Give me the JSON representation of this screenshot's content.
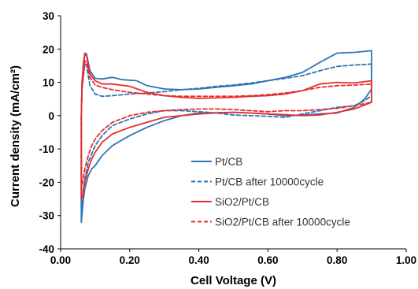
{
  "chart_data": {
    "type": "line",
    "title": "",
    "xlabel": "Cell Voltage (V)",
    "ylabel": "Current density (mA/cm²)",
    "xlim": [
      0.0,
      1.0
    ],
    "ylim": [
      -40,
      30
    ],
    "x_ticks": [
      "0.00",
      "0.20",
      "0.40",
      "0.60",
      "0.80",
      "1.00"
    ],
    "y_ticks": [
      "30",
      "20",
      "10",
      "0",
      "-10",
      "-20",
      "-30",
      "-40"
    ],
    "grid": false,
    "legend_position": "center-right",
    "series": [
      {
        "name": "Pt/CB",
        "color": "#2e75b6",
        "dash": "solid",
        "points": [
          [
            0.06,
            -32
          ],
          [
            0.06,
            -27
          ],
          [
            0.06,
            -12
          ],
          [
            0.06,
            0
          ],
          [
            0.062,
            10
          ],
          [
            0.066,
            16
          ],
          [
            0.07,
            18.8
          ],
          [
            0.075,
            18.5
          ],
          [
            0.085,
            13.5
          ],
          [
            0.1,
            11.2
          ],
          [
            0.12,
            11
          ],
          [
            0.15,
            11.5
          ],
          [
            0.18,
            10.8
          ],
          [
            0.22,
            10.5
          ],
          [
            0.25,
            9
          ],
          [
            0.3,
            8
          ],
          [
            0.35,
            7.8
          ],
          [
            0.4,
            8
          ],
          [
            0.45,
            8.5
          ],
          [
            0.5,
            9
          ],
          [
            0.55,
            9.5
          ],
          [
            0.6,
            10.5
          ],
          [
            0.65,
            11.5
          ],
          [
            0.7,
            13
          ],
          [
            0.75,
            16
          ],
          [
            0.8,
            18.8
          ],
          [
            0.85,
            19
          ],
          [
            0.9,
            19.5
          ],
          [
            0.9,
            10
          ],
          [
            0.9,
            8
          ],
          [
            0.88,
            5
          ],
          [
            0.85,
            2.5
          ],
          [
            0.8,
            0.8
          ],
          [
            0.75,
            0.5
          ],
          [
            0.7,
            0.2
          ],
          [
            0.65,
            0
          ],
          [
            0.6,
            0.5
          ],
          [
            0.55,
            0.8
          ],
          [
            0.5,
            1
          ],
          [
            0.4,
            0.8
          ],
          [
            0.35,
            0
          ],
          [
            0.3,
            -1.5
          ],
          [
            0.25,
            -3.5
          ],
          [
            0.2,
            -6
          ],
          [
            0.15,
            -9
          ],
          [
            0.12,
            -12
          ],
          [
            0.1,
            -15
          ],
          [
            0.09,
            -16
          ],
          [
            0.08,
            -18
          ],
          [
            0.07,
            -22
          ],
          [
            0.065,
            -26
          ],
          [
            0.06,
            -32
          ]
        ]
      },
      {
        "name": "Pt/CB after 10000cycle",
        "color": "#2e75b6",
        "dash": "dashed",
        "points": [
          [
            0.06,
            -28
          ],
          [
            0.06,
            -22
          ],
          [
            0.06,
            -10
          ],
          [
            0.06,
            0
          ],
          [
            0.062,
            8
          ],
          [
            0.066,
            12
          ],
          [
            0.07,
            15.5
          ],
          [
            0.075,
            15
          ],
          [
            0.085,
            9
          ],
          [
            0.1,
            6.5
          ],
          [
            0.12,
            5.8
          ],
          [
            0.15,
            6
          ],
          [
            0.2,
            6.5
          ],
          [
            0.25,
            6.8
          ],
          [
            0.3,
            7.2
          ],
          [
            0.35,
            7.8
          ],
          [
            0.4,
            8.2
          ],
          [
            0.45,
            8.8
          ],
          [
            0.5,
            9.2
          ],
          [
            0.55,
            9.8
          ],
          [
            0.6,
            10.5
          ],
          [
            0.65,
            11.2
          ],
          [
            0.7,
            12
          ],
          [
            0.75,
            13.5
          ],
          [
            0.8,
            14.8
          ],
          [
            0.85,
            15.2
          ],
          [
            0.9,
            15.5
          ],
          [
            0.9,
            9
          ],
          [
            0.9,
            6
          ],
          [
            0.88,
            4.5
          ],
          [
            0.85,
            3
          ],
          [
            0.8,
            2.5
          ],
          [
            0.75,
            1.5
          ],
          [
            0.7,
            0.5
          ],
          [
            0.65,
            -0.5
          ],
          [
            0.6,
            -0.2
          ],
          [
            0.55,
            0
          ],
          [
            0.5,
            0.2
          ],
          [
            0.45,
            0.8
          ],
          [
            0.4,
            1.2
          ],
          [
            0.35,
            1.5
          ],
          [
            0.3,
            1.5
          ],
          [
            0.25,
            0.5
          ],
          [
            0.2,
            -1
          ],
          [
            0.15,
            -3
          ],
          [
            0.12,
            -6
          ],
          [
            0.1,
            -9
          ],
          [
            0.08,
            -14
          ],
          [
            0.07,
            -19
          ],
          [
            0.065,
            -23
          ],
          [
            0.06,
            -28
          ]
        ]
      },
      {
        "name": "SiO2/Pt/CB",
        "color": "#e82d2d",
        "dash": "solid",
        "points": [
          [
            0.06,
            -25
          ],
          [
            0.06,
            -20
          ],
          [
            0.06,
            -8
          ],
          [
            0.06,
            0
          ],
          [
            0.062,
            10
          ],
          [
            0.066,
            15
          ],
          [
            0.07,
            18.5
          ],
          [
            0.075,
            18
          ],
          [
            0.085,
            12.5
          ],
          [
            0.1,
            10.5
          ],
          [
            0.12,
            9.5
          ],
          [
            0.15,
            9.5
          ],
          [
            0.2,
            8.8
          ],
          [
            0.25,
            7
          ],
          [
            0.3,
            6
          ],
          [
            0.35,
            5.5
          ],
          [
            0.4,
            5.2
          ],
          [
            0.5,
            5.5
          ],
          [
            0.55,
            5.8
          ],
          [
            0.6,
            6
          ],
          [
            0.65,
            6.5
          ],
          [
            0.7,
            7.5
          ],
          [
            0.75,
            9.5
          ],
          [
            0.8,
            10
          ],
          [
            0.85,
            9.8
          ],
          [
            0.9,
            10.5
          ],
          [
            0.9,
            6
          ],
          [
            0.9,
            4
          ],
          [
            0.85,
            2
          ],
          [
            0.8,
            1
          ],
          [
            0.75,
            0.2
          ],
          [
            0.7,
            0
          ],
          [
            0.65,
            0.3
          ],
          [
            0.6,
            0.5
          ],
          [
            0.55,
            0.8
          ],
          [
            0.5,
            1
          ],
          [
            0.45,
            0.8
          ],
          [
            0.4,
            0.5
          ],
          [
            0.35,
            0
          ],
          [
            0.3,
            -0.5
          ],
          [
            0.25,
            -2
          ],
          [
            0.2,
            -3.5
          ],
          [
            0.15,
            -5.5
          ],
          [
            0.12,
            -8
          ],
          [
            0.1,
            -11
          ],
          [
            0.09,
            -13
          ],
          [
            0.08,
            -16
          ],
          [
            0.07,
            -20
          ],
          [
            0.065,
            -24
          ],
          [
            0.06,
            -25
          ]
        ]
      },
      {
        "name": "SiO2/Pt/CB after 10000cycle",
        "color": "#e82d2d",
        "dash": "dashed",
        "points": [
          [
            0.06,
            -22
          ],
          [
            0.06,
            -18
          ],
          [
            0.06,
            -6
          ],
          [
            0.06,
            0
          ],
          [
            0.062,
            8
          ],
          [
            0.066,
            12
          ],
          [
            0.07,
            16.5
          ],
          [
            0.075,
            16
          ],
          [
            0.085,
            11.5
          ],
          [
            0.1,
            9.2
          ],
          [
            0.12,
            8.5
          ],
          [
            0.15,
            7.8
          ],
          [
            0.2,
            7
          ],
          [
            0.25,
            6.5
          ],
          [
            0.3,
            6
          ],
          [
            0.35,
            5.8
          ],
          [
            0.4,
            5.8
          ],
          [
            0.45,
            5.8
          ],
          [
            0.5,
            5.8
          ],
          [
            0.55,
            6
          ],
          [
            0.6,
            6.3
          ],
          [
            0.65,
            6.8
          ],
          [
            0.7,
            7.5
          ],
          [
            0.75,
            8.5
          ],
          [
            0.8,
            9
          ],
          [
            0.85,
            9.2
          ],
          [
            0.9,
            9.5
          ],
          [
            0.9,
            6
          ],
          [
            0.9,
            4
          ],
          [
            0.85,
            3
          ],
          [
            0.8,
            2.2
          ],
          [
            0.75,
            1.8
          ],
          [
            0.7,
            1.5
          ],
          [
            0.65,
            1.5
          ],
          [
            0.6,
            1.2
          ],
          [
            0.55,
            1.5
          ],
          [
            0.5,
            1.8
          ],
          [
            0.45,
            2
          ],
          [
            0.4,
            2
          ],
          [
            0.35,
            1.8
          ],
          [
            0.3,
            1.5
          ],
          [
            0.25,
            1
          ],
          [
            0.2,
            0
          ],
          [
            0.15,
            -2
          ],
          [
            0.12,
            -4.5
          ],
          [
            0.1,
            -7
          ],
          [
            0.09,
            -9
          ],
          [
            0.08,
            -12
          ],
          [
            0.07,
            -16
          ],
          [
            0.065,
            -19
          ],
          [
            0.06,
            -22
          ]
        ]
      }
    ]
  }
}
